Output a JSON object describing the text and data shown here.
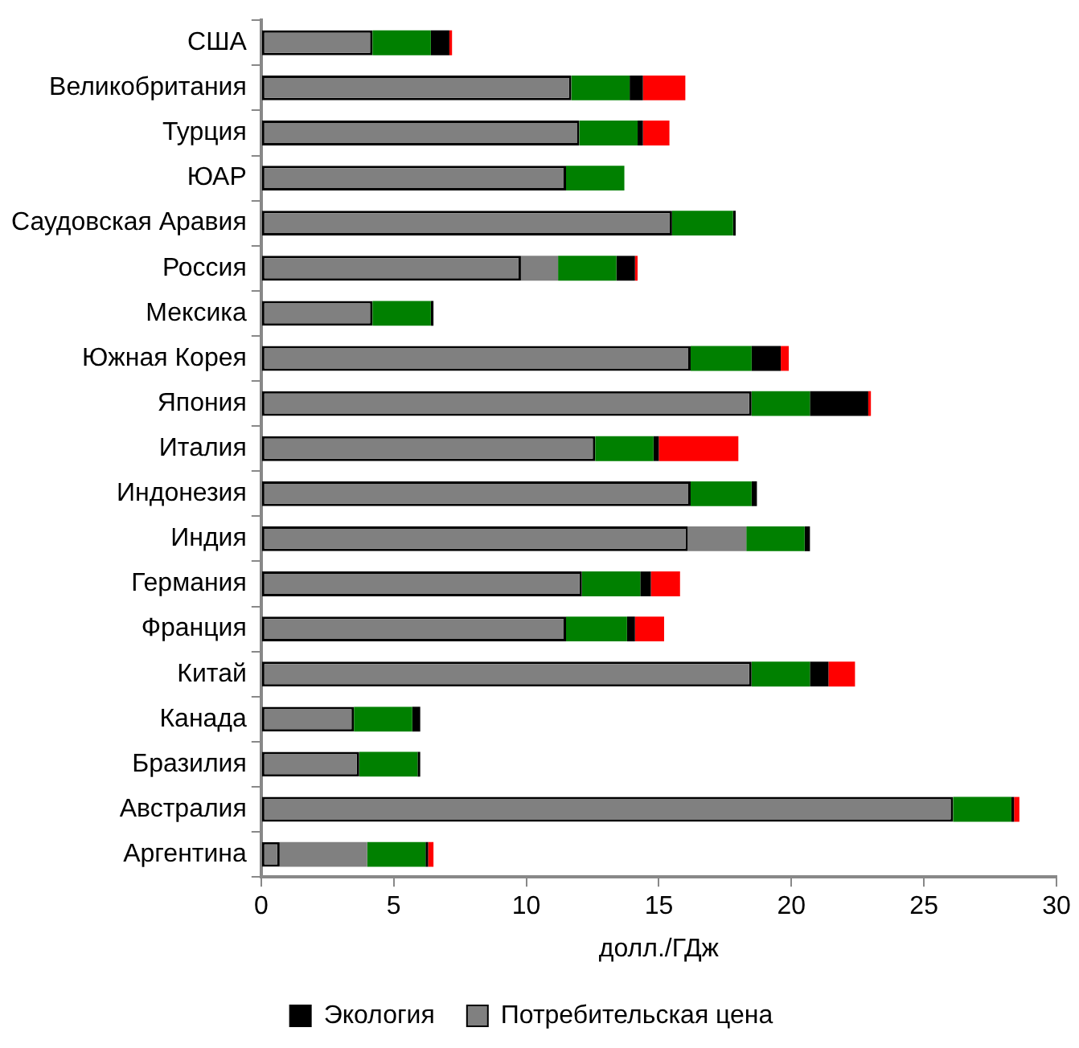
{
  "chart_data": {
    "type": "bar",
    "orientation": "horizontal",
    "stacked": true,
    "categories": [
      "США",
      "Великобритания",
      "Турция",
      "ЮАР",
      "Саудовская Аравия",
      "Россия",
      "Мексика",
      "Южная Корея",
      "Япония",
      "Италия",
      "Индонезия",
      "Индия",
      "Германия",
      "Франция",
      "Китай",
      "Канада",
      "Бразилия",
      "Австралия",
      "Аргентина"
    ],
    "series": [
      {
        "name": "Потребительская цена",
        "color": "#808080",
        "values": [
          4.2,
          11.7,
          12.0,
          11.5,
          15.5,
          9.8,
          4.2,
          16.2,
          18.5,
          12.6,
          16.2,
          16.1,
          12.1,
          11.5,
          18.5,
          3.5,
          3.7,
          26.1,
          0.7
        ]
      },
      {
        "color": "#808080",
        "values": [
          null,
          null,
          null,
          null,
          null,
          1.4,
          null,
          null,
          null,
          null,
          null,
          2.2,
          null,
          null,
          null,
          null,
          null,
          null,
          3.3
        ]
      },
      {
        "color": "#008000",
        "values": [
          2.2,
          2.2,
          2.2,
          2.2,
          2.3,
          2.2,
          2.2,
          2.3,
          2.2,
          2.2,
          2.3,
          2.2,
          2.2,
          2.3,
          2.2,
          2.2,
          2.2,
          2.2,
          2.2
        ]
      },
      {
        "name": "Экология",
        "color": "#000000",
        "values": [
          0.7,
          0.5,
          0.2,
          null,
          0.1,
          0.7,
          0.1,
          1.1,
          2.2,
          0.2,
          0.2,
          0.2,
          0.4,
          0.3,
          0.7,
          0.3,
          0.1,
          0.1,
          0.1
        ]
      },
      {
        "color": "#ff0000",
        "values": [
          0.1,
          1.6,
          1.0,
          null,
          null,
          0.1,
          null,
          0.3,
          0.1,
          3.0,
          null,
          null,
          1.1,
          1.1,
          1.0,
          null,
          null,
          0.2,
          0.2
        ]
      }
    ],
    "xlabel": "долл./ГДж",
    "xlim": [
      0,
      30
    ],
    "xticks": [
      0,
      5,
      10,
      15,
      20,
      25,
      30
    ],
    "grid": false,
    "legend": "bottom"
  }
}
